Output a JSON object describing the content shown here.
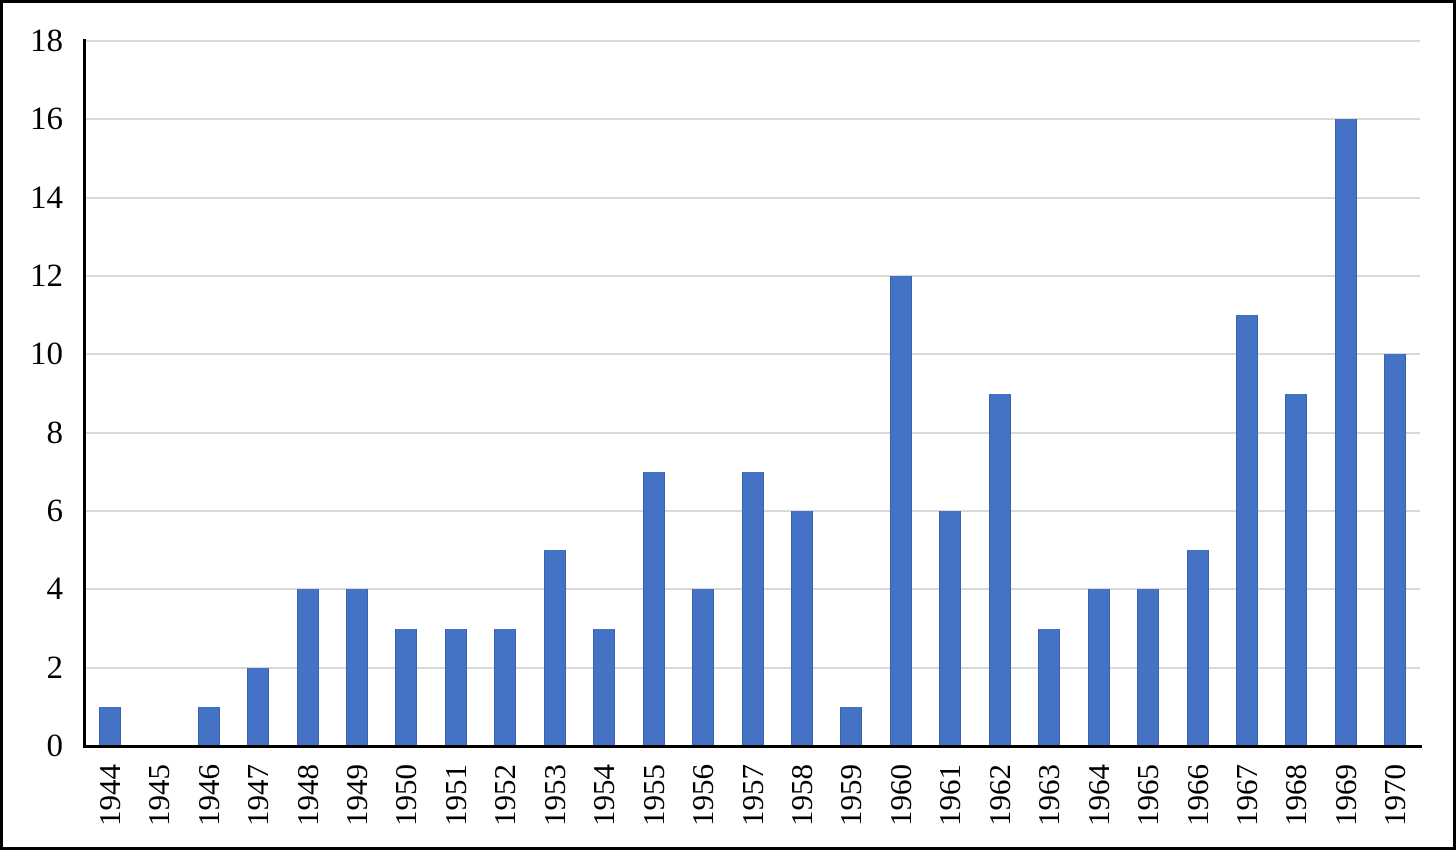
{
  "page": {
    "background": "#FFFFFF",
    "frame_border_color": "#000000"
  },
  "chart_data": {
    "type": "bar",
    "categories": [
      "1944",
      "1945",
      "1946",
      "1947",
      "1948",
      "1949",
      "1950",
      "1951",
      "1952",
      "1953",
      "1954",
      "1955",
      "1956",
      "1957",
      "1958",
      "1959",
      "1960",
      "1961",
      "1962",
      "1963",
      "1964",
      "1965",
      "1966",
      "1967",
      "1968",
      "1969",
      "1970"
    ],
    "values": [
      1,
      0,
      1,
      2,
      4,
      4,
      3,
      3,
      3,
      5,
      3,
      7,
      4,
      7,
      6,
      1,
      12,
      6,
      9,
      3,
      4,
      4,
      5,
      11,
      9,
      16,
      10
    ],
    "xlabel": "",
    "ylabel": "",
    "ylim": [
      0,
      18
    ],
    "yticks": [
      0,
      2,
      4,
      6,
      8,
      10,
      12,
      14,
      16,
      18
    ],
    "grid": true,
    "legend_position": "none",
    "x_tick_rotation_degrees": 90,
    "colors": {
      "bar_fill": "#4472C4",
      "bar_edge": "#3A62AE",
      "gridline": "#D9D9D9",
      "axis": "#000000",
      "tick_label": "#000000"
    }
  }
}
